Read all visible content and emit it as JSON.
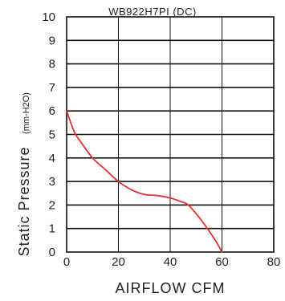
{
  "chart_data": {
    "type": "line",
    "title": "WB922H7PI (DC)",
    "xlabel": "AIRFLOW CFM",
    "ylabel": "Static Pressure",
    "ylabel_unit": "(mm-H2O)",
    "xlim": [
      0,
      80
    ],
    "ylim": [
      0,
      10
    ],
    "x_ticks": [
      "0",
      "20",
      "40",
      "60",
      "80"
    ],
    "y_ticks": [
      "0",
      "1",
      "2",
      "3",
      "4",
      "5",
      "6",
      "7",
      "8",
      "9",
      "10"
    ],
    "grid": true,
    "series": [
      {
        "color": "#e53030",
        "x": [
          0,
          3,
          6,
          10,
          15,
          20,
          25,
          30,
          35,
          40,
          44,
          47,
          51,
          55,
          58,
          60
        ],
        "y": [
          6.0,
          5.1,
          4.6,
          4.0,
          3.5,
          3.0,
          2.65,
          2.45,
          2.4,
          2.3,
          2.15,
          2.0,
          1.5,
          0.9,
          0.4,
          0.0
        ]
      }
    ]
  }
}
